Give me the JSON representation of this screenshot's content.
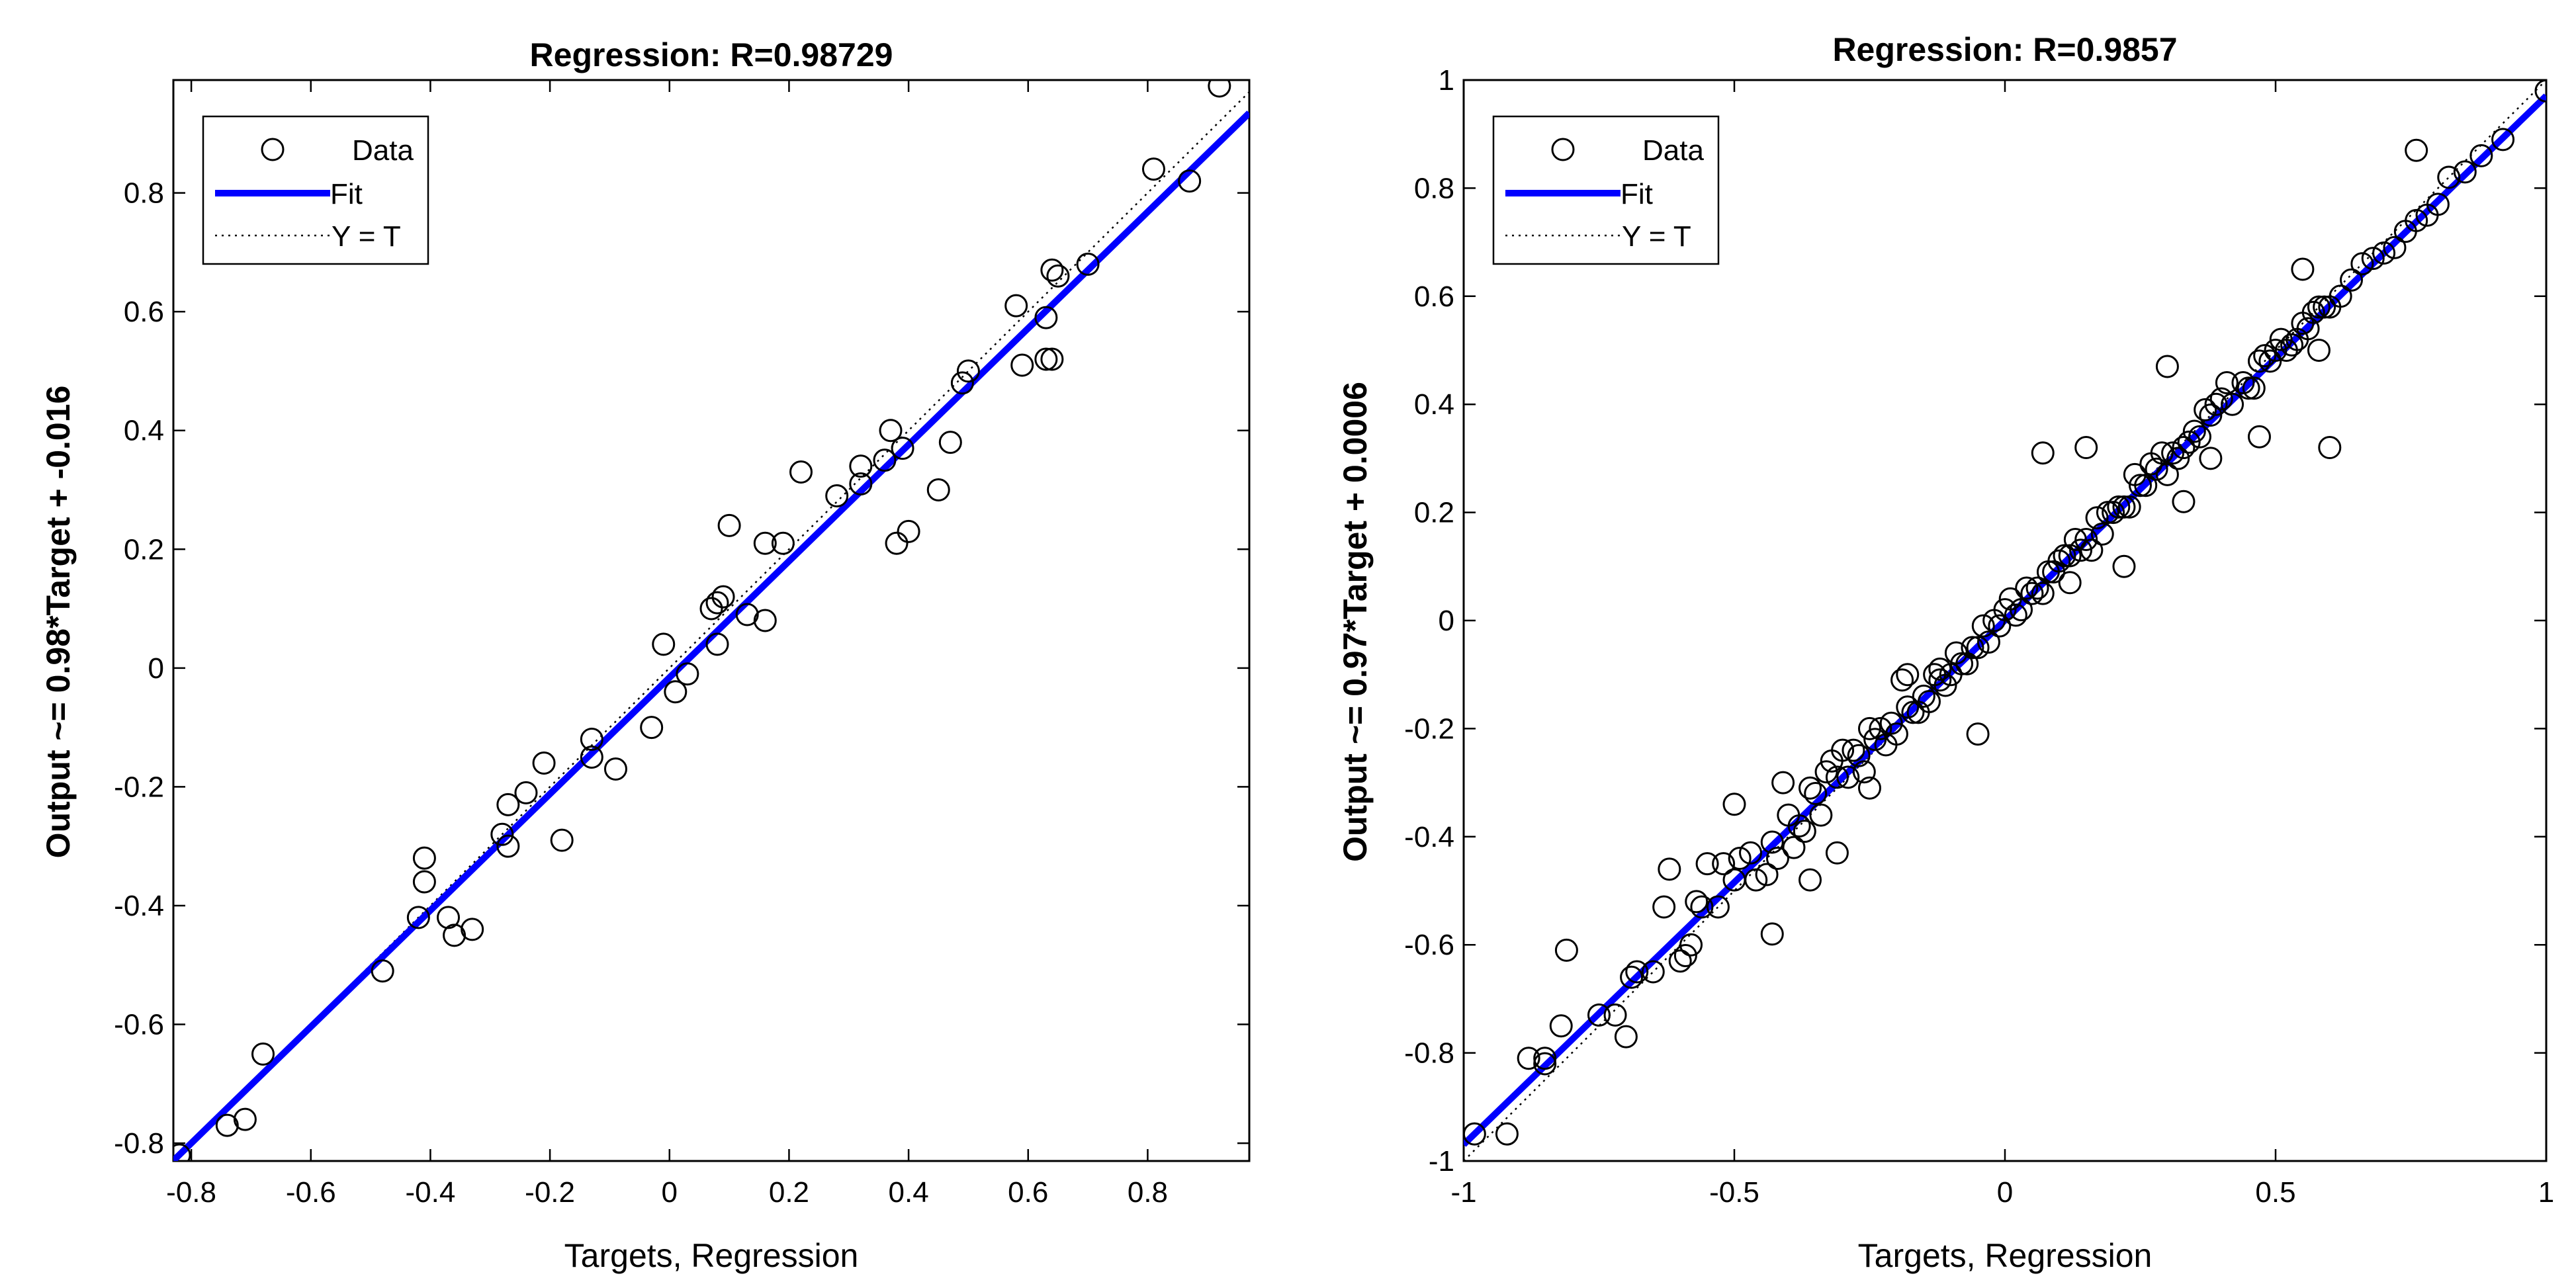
{
  "colors": {
    "fit": "#0000ff",
    "data_marker": "#000000",
    "identity": "#000000",
    "background": "#ffffff"
  },
  "chart_data": [
    {
      "type": "scatter",
      "title": "Regression: R=0.98729",
      "xlabel": "Targets, Regression",
      "ylabel": "Output ~= 0.98*Target + -0.016",
      "xlim": [
        -0.83,
        0.97
      ],
      "ylim": [
        -0.83,
        0.99
      ],
      "xticks": [
        -0.8,
        -0.6,
        -0.4,
        -0.2,
        0,
        0.2,
        0.4,
        0.6,
        0.8
      ],
      "xtick_labels": [
        "-0.8",
        "-0.6",
        "-0.4",
        "-0.2",
        "0",
        "0.2",
        "0.4",
        "0.6",
        "0.8"
      ],
      "yticks": [
        -0.8,
        -0.6,
        -0.4,
        -0.2,
        0,
        0.2,
        0.4,
        0.6,
        0.8
      ],
      "ytick_labels": [
        "-0.8",
        "-0.6",
        "-0.4",
        "-0.2",
        "0",
        "0.2",
        "0.4",
        "0.6",
        "0.8"
      ],
      "fit": {
        "slope": 0.98,
        "intercept": -0.016
      },
      "legend": {
        "location": "top-left",
        "entries": [
          "Data",
          "Fit",
          "Y = T"
        ]
      },
      "points": {
        "x": [
          -0.82,
          -0.74,
          -0.71,
          -0.68,
          -0.48,
          -0.42,
          -0.41,
          -0.41,
          -0.37,
          -0.36,
          -0.33,
          -0.28,
          -0.27,
          -0.27,
          -0.24,
          -0.21,
          -0.18,
          -0.13,
          -0.13,
          -0.09,
          -0.03,
          -0.01,
          0.01,
          0.03,
          0.07,
          0.08,
          0.08,
          0.09,
          0.1,
          0.13,
          0.16,
          0.16,
          0.19,
          0.22,
          0.28,
          0.32,
          0.32,
          0.36,
          0.37,
          0.38,
          0.39,
          0.4,
          0.45,
          0.47,
          0.49,
          0.5,
          0.58,
          0.59,
          0.63,
          0.63,
          0.64,
          0.64,
          0.65,
          0.7,
          0.81,
          0.87,
          0.92
        ],
        "y": [
          -0.82,
          -0.77,
          -0.76,
          -0.65,
          -0.51,
          -0.42,
          -0.36,
          -0.32,
          -0.42,
          -0.45,
          -0.44,
          -0.28,
          -0.23,
          -0.3,
          -0.21,
          -0.16,
          -0.29,
          -0.15,
          -0.12,
          -0.17,
          -0.1,
          0.04,
          -0.04,
          -0.01,
          0.1,
          0.11,
          0.04,
          0.12,
          0.24,
          0.09,
          0.08,
          0.21,
          0.21,
          0.33,
          0.29,
          0.34,
          0.31,
          0.35,
          0.4,
          0.21,
          0.37,
          0.23,
          0.3,
          0.38,
          0.48,
          0.5,
          0.61,
          0.51,
          0.59,
          0.52,
          0.52,
          0.67,
          0.66,
          0.68,
          0.84,
          0.82,
          0.98
        ]
      }
    },
    {
      "type": "scatter",
      "title": "Regression: R=0.9857",
      "xlabel": "Targets, Regression",
      "ylabel": "Output ~= 0.97*Target + 0.0006",
      "xlim": [
        -1,
        1
      ],
      "ylim": [
        -1,
        1
      ],
      "xticks": [
        -1,
        -0.5,
        0,
        0.5,
        1
      ],
      "xtick_labels": [
        "-1",
        "-0.5",
        "0",
        "0.5",
        "1"
      ],
      "yticks": [
        -1,
        -0.8,
        -0.6,
        -0.4,
        -0.2,
        0,
        0.2,
        0.4,
        0.6,
        0.8,
        1
      ],
      "ytick_labels": [
        "-1",
        "-0.8",
        "-0.6",
        "-0.4",
        "-0.2",
        "0",
        "0.2",
        "0.4",
        "0.6",
        "0.8",
        "1"
      ],
      "fit": {
        "slope": 0.97,
        "intercept": 0.0006
      },
      "legend": {
        "location": "top-left",
        "entries": [
          "Data",
          "Fit",
          "Y = T"
        ]
      },
      "points": {
        "x": [
          -0.98,
          -0.92,
          -0.88,
          -0.85,
          -0.82,
          -0.81,
          -0.75,
          -0.72,
          -0.69,
          -0.68,
          -0.65,
          -0.63,
          -0.6,
          -0.59,
          -0.58,
          -0.57,
          -0.56,
          -0.55,
          -0.53,
          -0.52,
          -0.5,
          -0.49,
          -0.47,
          -0.46,
          -0.44,
          -0.43,
          -0.42,
          -0.41,
          -0.4,
          -0.39,
          -0.38,
          -0.37,
          -0.36,
          -0.35,
          -0.34,
          -0.33,
          -0.32,
          -0.31,
          -0.3,
          -0.29,
          -0.28,
          -0.27,
          -0.26,
          -0.25,
          -0.24,
          -0.23,
          -0.22,
          -0.21,
          -0.2,
          -0.19,
          -0.18,
          -0.17,
          -0.16,
          -0.15,
          -0.14,
          -0.13,
          -0.12,
          -0.11,
          -0.1,
          -0.09,
          -0.08,
          -0.07,
          -0.06,
          -0.05,
          -0.04,
          -0.03,
          -0.02,
          -0.01,
          0.0,
          0.01,
          0.02,
          0.03,
          0.04,
          0.05,
          0.06,
          0.07,
          0.08,
          0.09,
          0.1,
          0.11,
          0.12,
          0.13,
          0.14,
          0.15,
          0.16,
          0.17,
          0.18,
          0.19,
          0.2,
          0.21,
          0.22,
          0.23,
          0.24,
          0.25,
          0.26,
          0.27,
          0.28,
          0.29,
          0.3,
          0.31,
          0.32,
          0.33,
          0.34,
          0.35,
          0.36,
          0.37,
          0.38,
          0.39,
          0.4,
          0.41,
          0.42,
          0.44,
          0.45,
          0.46,
          0.47,
          0.48,
          0.49,
          0.5,
          0.51,
          0.52,
          0.53,
          0.54,
          0.55,
          0.56,
          0.57,
          0.58,
          0.59,
          0.6,
          0.62,
          0.64,
          0.66,
          0.68,
          0.7,
          0.72,
          0.74,
          0.76,
          0.78,
          0.8,
          0.82,
          0.85,
          0.88,
          0.92,
          1.0,
          -0.85,
          -0.62,
          -0.5,
          -0.36,
          -0.25,
          -0.12,
          -0.05,
          0.07,
          0.15,
          0.22,
          0.3,
          0.38,
          0.47,
          0.55,
          0.6,
          0.76,
          -0.7,
          -0.43,
          -0.31,
          -0.18,
          0.12,
          0.33,
          0.58
        ],
        "y": [
          -0.95,
          -0.95,
          -0.81,
          -0.81,
          -0.75,
          -0.61,
          -0.73,
          -0.73,
          -0.66,
          -0.65,
          -0.65,
          -0.53,
          -0.63,
          -0.62,
          -0.6,
          -0.52,
          -0.53,
          -0.45,
          -0.53,
          -0.45,
          -0.48,
          -0.44,
          -0.43,
          -0.48,
          -0.47,
          -0.41,
          -0.44,
          -0.3,
          -0.36,
          -0.42,
          -0.38,
          -0.39,
          -0.31,
          -0.32,
          -0.36,
          -0.28,
          -0.26,
          -0.29,
          -0.24,
          -0.29,
          -0.24,
          -0.25,
          -0.28,
          -0.2,
          -0.22,
          -0.2,
          -0.23,
          -0.19,
          -0.21,
          -0.11,
          -0.16,
          -0.17,
          -0.17,
          -0.14,
          -0.15,
          -0.1,
          -0.09,
          -0.12,
          -0.1,
          -0.06,
          -0.08,
          -0.08,
          -0.05,
          -0.05,
          -0.01,
          -0.04,
          0.0,
          -0.01,
          0.02,
          0.04,
          0.01,
          0.02,
          0.06,
          0.05,
          0.06,
          0.05,
          0.09,
          0.09,
          0.11,
          0.12,
          0.12,
          0.15,
          0.13,
          0.15,
          0.13,
          0.19,
          0.16,
          0.2,
          0.2,
          0.21,
          0.21,
          0.21,
          0.27,
          0.25,
          0.25,
          0.29,
          0.28,
          0.31,
          0.27,
          0.31,
          0.3,
          0.32,
          0.33,
          0.35,
          0.34,
          0.39,
          0.38,
          0.4,
          0.41,
          0.44,
          0.4,
          0.44,
          0.43,
          0.43,
          0.48,
          0.49,
          0.48,
          0.5,
          0.52,
          0.5,
          0.51,
          0.52,
          0.55,
          0.54,
          0.57,
          0.58,
          0.58,
          0.58,
          0.6,
          0.63,
          0.66,
          0.67,
          0.68,
          0.69,
          0.72,
          0.74,
          0.75,
          0.77,
          0.82,
          0.83,
          0.86,
          0.89,
          0.98,
          -0.82,
          -0.46,
          -0.34,
          -0.48,
          -0.31,
          -0.11,
          -0.21,
          0.31,
          0.32,
          0.1,
          0.47,
          0.3,
          0.34,
          0.65,
          0.32,
          0.87,
          -0.77,
          -0.58,
          -0.43,
          -0.1,
          0.07,
          0.22,
          0.5
        ]
      }
    }
  ]
}
